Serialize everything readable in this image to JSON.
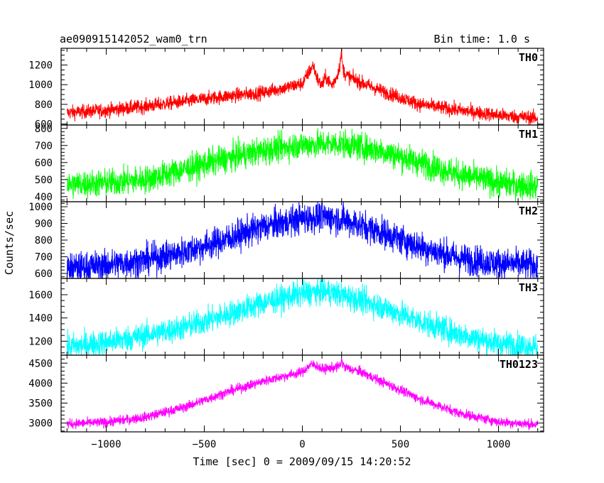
{
  "chart_data": {
    "type": "line",
    "title": "ae090915142052_wam0_trn",
    "subtitle": "Bin time: 1.0 s",
    "xlabel": "Time [sec] 0 = 2009/09/15 14:20:52",
    "ylabel": "Counts/sec",
    "xlim": [
      -1230,
      1230
    ],
    "x_ticks": [
      -1000,
      -500,
      0,
      500,
      1000
    ],
    "x_tick_labels": [
      "−1000",
      "−500",
      "0",
      "500",
      "1000"
    ],
    "grid": false,
    "series": [
      {
        "name": "TH0",
        "color": "#ff0000",
        "ylim": [
          590,
          1370
        ],
        "y_ticks": [
          600,
          800,
          1000,
          1200
        ],
        "noise": 35,
        "x": [
          -1200,
          -1000,
          -800,
          -600,
          -400,
          -200,
          0,
          40,
          55,
          80,
          100,
          120,
          150,
          175,
          190,
          200,
          205,
          220,
          260,
          300,
          400,
          500,
          600,
          800,
          1000,
          1200
        ],
        "values": [
          715,
          740,
          780,
          830,
          880,
          920,
          1010,
          1150,
          1200,
          1040,
          990,
          1080,
          990,
          1080,
          1190,
          1330,
          1180,
          1100,
          1060,
          1020,
          940,
          870,
          800,
          740,
          690,
          660
        ]
      },
      {
        "name": "TH1",
        "color": "#00ff00",
        "ylim": [
          370,
          820
        ],
        "y_ticks": [
          400,
          500,
          600,
          700,
          800
        ],
        "noise": 40,
        "x": [
          -1200,
          -1000,
          -800,
          -600,
          -400,
          -200,
          0,
          200,
          400,
          600,
          800,
          1000,
          1200
        ],
        "values": [
          470,
          480,
          500,
          560,
          620,
          670,
          705,
          710,
          670,
          600,
          530,
          480,
          460
        ]
      },
      {
        "name": "TH2",
        "color": "#0000ff",
        "ylim": [
          570,
          1030
        ],
        "y_ticks": [
          600,
          700,
          800,
          900,
          1000
        ],
        "noise": 45,
        "x": [
          -1200,
          -1000,
          -800,
          -600,
          -400,
          -200,
          0,
          100,
          200,
          400,
          600,
          800,
          1000,
          1200
        ],
        "values": [
          630,
          650,
          680,
          730,
          800,
          880,
          930,
          940,
          925,
          850,
          760,
          690,
          660,
          650
        ]
      },
      {
        "name": "TH3",
        "color": "#00ffff",
        "ylim": [
          1080,
          1740
        ],
        "y_ticks": [
          1200,
          1400,
          1600
        ],
        "noise": 55,
        "x": [
          -1200,
          -1000,
          -800,
          -600,
          -400,
          -200,
          0,
          100,
          200,
          400,
          600,
          800,
          1000,
          1200
        ],
        "values": [
          1150,
          1190,
          1250,
          1320,
          1420,
          1530,
          1610,
          1630,
          1600,
          1500,
          1370,
          1260,
          1180,
          1150
        ]
      },
      {
        "name": "TH0123",
        "color": "#ff00ff",
        "ylim": [
          2780,
          4700
        ],
        "y_ticks": [
          3000,
          3500,
          4000,
          4500
        ],
        "noise": 60,
        "x": [
          -1200,
          -1000,
          -800,
          -600,
          -400,
          -200,
          0,
          40,
          60,
          100,
          150,
          190,
          200,
          215,
          260,
          300,
          400,
          600,
          800,
          1000,
          1200
        ],
        "values": [
          2980,
          3020,
          3150,
          3400,
          3750,
          4050,
          4280,
          4450,
          4470,
          4350,
          4380,
          4420,
          4550,
          4400,
          4330,
          4280,
          4050,
          3600,
          3250,
          3030,
          2960
        ]
      }
    ]
  }
}
